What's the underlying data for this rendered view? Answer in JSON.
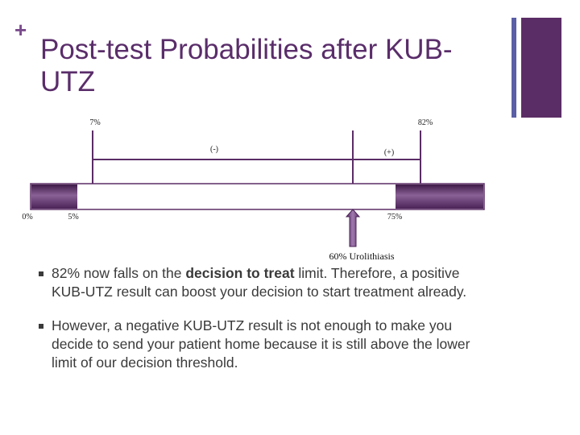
{
  "slide": {
    "title": "Post-test Probabilities after KUB-UTZ"
  },
  "diagram": {
    "top_labels": {
      "low": "7%",
      "high": "82%"
    },
    "bracket_labels": {
      "negative": "(-)",
      "positive": "(+)"
    },
    "bottom_labels": {
      "zero": "0%",
      "five": "5%",
      "seventyfive": "75%"
    },
    "arrow_label": "60% Urolithiasis"
  },
  "bullets": [
    {
      "pre": "82% now falls on the ",
      "bold": "decision to treat",
      "post": " limit. Therefore, a positive KUB-UTZ result can boost your decision to start treatment already."
    },
    {
      "text": "However, a negative KUB-UTZ result is not enough to make you decide to send your patient home because it is still above the lower limit of our decision threshold."
    }
  ],
  "colors": {
    "accent": "#5b2d66",
    "accent_light": "#7a4b8c",
    "accent_blue": "#5b5fa5",
    "text": "#3a3a3a"
  }
}
